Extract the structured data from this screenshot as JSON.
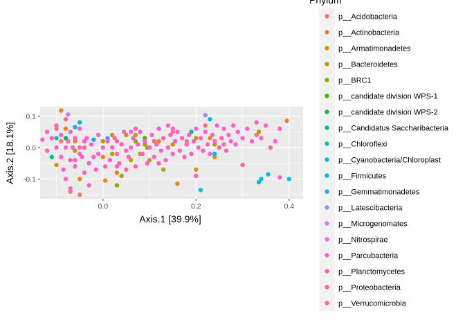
{
  "chart_data": {
    "type": "scatter",
    "title": "",
    "xlabel": "Axis.1   [39.9%]",
    "ylabel": "Axis.2   [18.1%]",
    "xlim": [
      -0.135,
      0.43
    ],
    "ylim": [
      -0.163,
      0.13
    ],
    "xticks": [
      {
        "v": 0.0,
        "label": "0.0"
      },
      {
        "v": 0.2,
        "label": "0.2"
      },
      {
        "v": 0.4,
        "label": "0.4"
      }
    ],
    "yticks": [
      {
        "v": -0.1,
        "label": "-0.1"
      },
      {
        "v": 0.0,
        "label": "0.0"
      },
      {
        "v": 0.1,
        "label": "0.1"
      }
    ],
    "grid": true,
    "legend_title": "Phylum",
    "legend_position": "right",
    "series": [
      {
        "name": "p__Acidobacteria",
        "color": "#F8766D",
        "points": [
          [
            -0.07,
            -0.14
          ],
          [
            -0.05,
            -0.15
          ],
          [
            -0.09,
            0.02
          ],
          [
            -0.03,
            -0.05
          ]
        ]
      },
      {
        "name": "p__Actinobacteria",
        "color": "#E7851E",
        "points": [
          [
            -0.09,
            0.118
          ],
          [
            -0.1,
            -0.055
          ],
          [
            -0.08,
            0.06
          ],
          [
            -0.06,
            0.02
          ],
          [
            -0.05,
            -0.1
          ],
          [
            0.0,
            -0.03
          ],
          [
            0.005,
            -0.105
          ],
          [
            0.02,
            0.04
          ],
          [
            0.03,
            -0.08
          ],
          [
            0.12,
            0.02
          ],
          [
            0.16,
            -0.115
          ],
          [
            0.2,
            -0.07
          ],
          [
            0.23,
            0.03
          ],
          [
            0.24,
            -0.03
          ],
          [
            0.395,
            0.085
          ]
        ]
      },
      {
        "name": "p__Armatimonadetes",
        "color": "#D09400",
        "points": [
          [
            0.05,
            0.04
          ],
          [
            0.15,
            0.01
          ]
        ]
      },
      {
        "name": "p__Bacteroidetes",
        "color": "#B2A100",
        "points": [
          [
            -0.06,
            -0.01
          ],
          [
            0.0,
            0.02
          ],
          [
            0.02,
            -0.02
          ],
          [
            0.04,
            -0.09
          ],
          [
            0.06,
            -0.04
          ],
          [
            0.07,
            0.04
          ],
          [
            0.08,
            -0.02
          ],
          [
            0.09,
            0.01
          ],
          [
            0.1,
            -0.04
          ],
          [
            0.13,
            -0.07
          ],
          [
            0.2,
            0.03
          ],
          [
            0.24,
            0.01
          ],
          [
            0.335,
            0.05
          ]
        ]
      },
      {
        "name": "p__BRC1",
        "color": "#89AC00",
        "points": [
          [
            0.03,
            -0.12
          ],
          [
            0.07,
            0.02
          ],
          [
            0.095,
            0.0
          ]
        ]
      },
      {
        "name": "p__candidate division WPS-1",
        "color": "#45B500",
        "points": [
          [
            0.09,
            0.03
          ]
        ]
      },
      {
        "name": "p__candidate division WPS-2",
        "color": "#00BC51",
        "points": [
          [
            -0.08,
            0.03
          ]
        ]
      },
      {
        "name": "p__Candidatus Saccharibacteria",
        "color": "#00C087",
        "points": [
          [
            -0.11,
            -0.03
          ],
          [
            0.19,
            0.05
          ],
          [
            0.25,
            0.0
          ]
        ]
      },
      {
        "name": "p__Chloroflexi",
        "color": "#00C0B2",
        "points": [
          [
            -0.1,
            0.03
          ],
          [
            -0.05,
            0.08
          ]
        ]
      },
      {
        "name": "p__Cyanobacteria/Chloroplast",
        "color": "#00BCD6",
        "points": [
          [
            0.21,
            -0.135
          ],
          [
            0.335,
            -0.11
          ],
          [
            0.34,
            -0.1
          ],
          [
            0.355,
            -0.085
          ],
          [
            0.4,
            -0.1
          ]
        ]
      },
      {
        "name": "p__Firmicutes",
        "color": "#00B3F2",
        "points": [
          [
            -0.06,
            0.065
          ],
          [
            0.23,
            0.09
          ],
          [
            0.24,
            -0.02
          ]
        ]
      },
      {
        "name": "p__Gemmatimonadetes",
        "color": "#29A3FF",
        "points": [
          [
            -0.02,
            0.025
          ],
          [
            0.01,
            0.03
          ]
        ]
      },
      {
        "name": "p__Latescibacteria",
        "color": "#9C8DFF",
        "points": [
          [
            0.22,
            0.103
          ]
        ]
      },
      {
        "name": "p__Microgenomates",
        "color": "#D277FF",
        "points": [
          [
            -0.075,
            0.105
          ]
        ]
      },
      {
        "name": "p__Nitrospirae",
        "color": "#F166E8",
        "points": [
          [
            0.06,
            0.05
          ]
        ]
      },
      {
        "name": "p__Parcubacteria",
        "color": "#FF61C7",
        "points": [
          [
            -0.13,
            0.025
          ],
          [
            -0.12,
            0.05
          ],
          [
            -0.12,
            -0.01
          ],
          [
            -0.11,
            0.03
          ],
          [
            -0.1,
            0.0
          ],
          [
            -0.1,
            0.07
          ],
          [
            -0.09,
            -0.03
          ],
          [
            -0.09,
            0.04
          ],
          [
            -0.085,
            -0.07
          ],
          [
            -0.08,
            0.0
          ],
          [
            -0.08,
            -0.1
          ],
          [
            -0.075,
            0.02
          ],
          [
            -0.07,
            -0.04
          ],
          [
            -0.07,
            0.05
          ],
          [
            -0.07,
            -0.13
          ],
          [
            -0.065,
            0.0
          ],
          [
            -0.06,
            -0.06
          ],
          [
            -0.06,
            0.03
          ],
          [
            -0.05,
            -0.02
          ],
          [
            -0.05,
            0.0
          ],
          [
            -0.05,
            0.06
          ],
          [
            -0.045,
            -0.03
          ],
          [
            -0.04,
            -0.08
          ],
          [
            -0.04,
            0.02
          ],
          [
            -0.035,
            0.03
          ],
          [
            -0.03,
            -0.05
          ],
          [
            -0.03,
            -0.12
          ],
          [
            -0.025,
            0.01
          ],
          [
            -0.02,
            -0.03
          ],
          [
            -0.015,
            -0.07
          ],
          [
            -0.01,
            0.04
          ],
          [
            -0.01,
            -0.02
          ],
          [
            0.0,
            0.0
          ],
          [
            0.005,
            -0.06
          ],
          [
            0.01,
            0.02
          ],
          [
            0.015,
            -0.04
          ],
          [
            0.02,
            0.0
          ],
          [
            0.025,
            0.03
          ],
          [
            0.03,
            -0.02
          ],
          [
            0.035,
            -0.05
          ],
          [
            0.04,
            0.01
          ],
          [
            0.045,
            0.05
          ],
          [
            0.05,
            -0.01
          ],
          [
            0.055,
            -0.03
          ],
          [
            0.06,
            0.0
          ],
          [
            0.065,
            0.03
          ],
          [
            0.07,
            -0.06
          ],
          [
            0.075,
            0.01
          ],
          [
            0.08,
            0.05
          ],
          [
            0.085,
            -0.02
          ],
          [
            0.09,
            0.02
          ],
          [
            0.095,
            -0.05
          ],
          [
            0.1,
            0.0
          ],
          [
            0.105,
            0.04
          ],
          [
            0.11,
            -0.03
          ],
          [
            0.115,
            0.01
          ],
          [
            0.12,
            0.06
          ],
          [
            0.125,
            -0.01
          ],
          [
            0.13,
            0.03
          ],
          [
            0.135,
            -0.04
          ],
          [
            0.14,
            0.0
          ],
          [
            0.145,
            0.04
          ],
          [
            0.15,
            -0.02
          ],
          [
            0.155,
            0.02
          ],
          [
            0.16,
            0.05
          ],
          [
            0.165,
            -0.01
          ],
          [
            0.17,
            0.03
          ],
          [
            0.175,
            -0.03
          ],
          [
            0.18,
            0.01
          ],
          [
            0.185,
            0.04
          ],
          [
            0.19,
            -0.02
          ],
          [
            0.195,
            0.02
          ],
          [
            0.2,
            0.06
          ],
          [
            0.205,
            0.0
          ],
          [
            0.21,
            0.03
          ],
          [
            0.215,
            -0.01
          ],
          [
            0.22,
            0.05
          ],
          [
            0.225,
            0.01
          ],
          [
            0.23,
            -0.02
          ],
          [
            0.235,
            0.04
          ],
          [
            0.24,
            0.02
          ],
          [
            0.245,
            0.07
          ],
          [
            0.25,
            0.0
          ],
          [
            0.255,
            0.03
          ],
          [
            0.26,
            0.06
          ],
          [
            0.265,
            -0.01
          ],
          [
            0.27,
            0.04
          ],
          [
            0.275,
            0.02
          ],
          [
            0.28,
            0.07
          ],
          [
            0.285,
            0.01
          ],
          [
            0.29,
            0.05
          ],
          [
            0.3,
            0.03
          ],
          [
            0.31,
            0.06
          ],
          [
            0.32,
            0.02
          ],
          [
            0.33,
            0.08
          ],
          [
            0.34,
            0.03
          ],
          [
            0.35,
            0.07
          ],
          [
            0.37,
            0.02
          ],
          [
            0.38,
            -0.095
          ],
          [
            0.38,
            0.06
          ],
          [
            0.15,
            0.06
          ],
          [
            0.03,
            -0.06
          ],
          [
            0.14,
            0.07
          ]
        ]
      },
      {
        "name": "p__Planctomycetes",
        "color": "#FF64B0",
        "points": [
          [
            -0.06,
            -0.04
          ],
          [
            0.05,
            -0.07
          ],
          [
            0.07,
            0.06
          ],
          [
            0.12,
            -0.05
          ],
          [
            0.2,
            -0.09
          ],
          [
            0.3,
            -0.055
          ]
        ]
      },
      {
        "name": "p__Proteobacteria",
        "color": "#FF6C91",
        "points": [
          [
            -0.1,
            0.06
          ],
          [
            -0.04,
            0.0
          ],
          [
            0.03,
            0.02
          ],
          [
            0.11,
            0.02
          ],
          [
            0.18,
            0.02
          ],
          [
            0.26,
            0.01
          ],
          [
            0.33,
            0.04
          ],
          [
            0.36,
            0.0
          ]
        ]
      },
      {
        "name": "p__Verrucomicrobia",
        "color": "#FC717F",
        "points": [
          [
            -0.08,
            0.09
          ],
          [
            0.15,
            0.05
          ],
          [
            0.22,
            0.07
          ]
        ]
      }
    ]
  }
}
